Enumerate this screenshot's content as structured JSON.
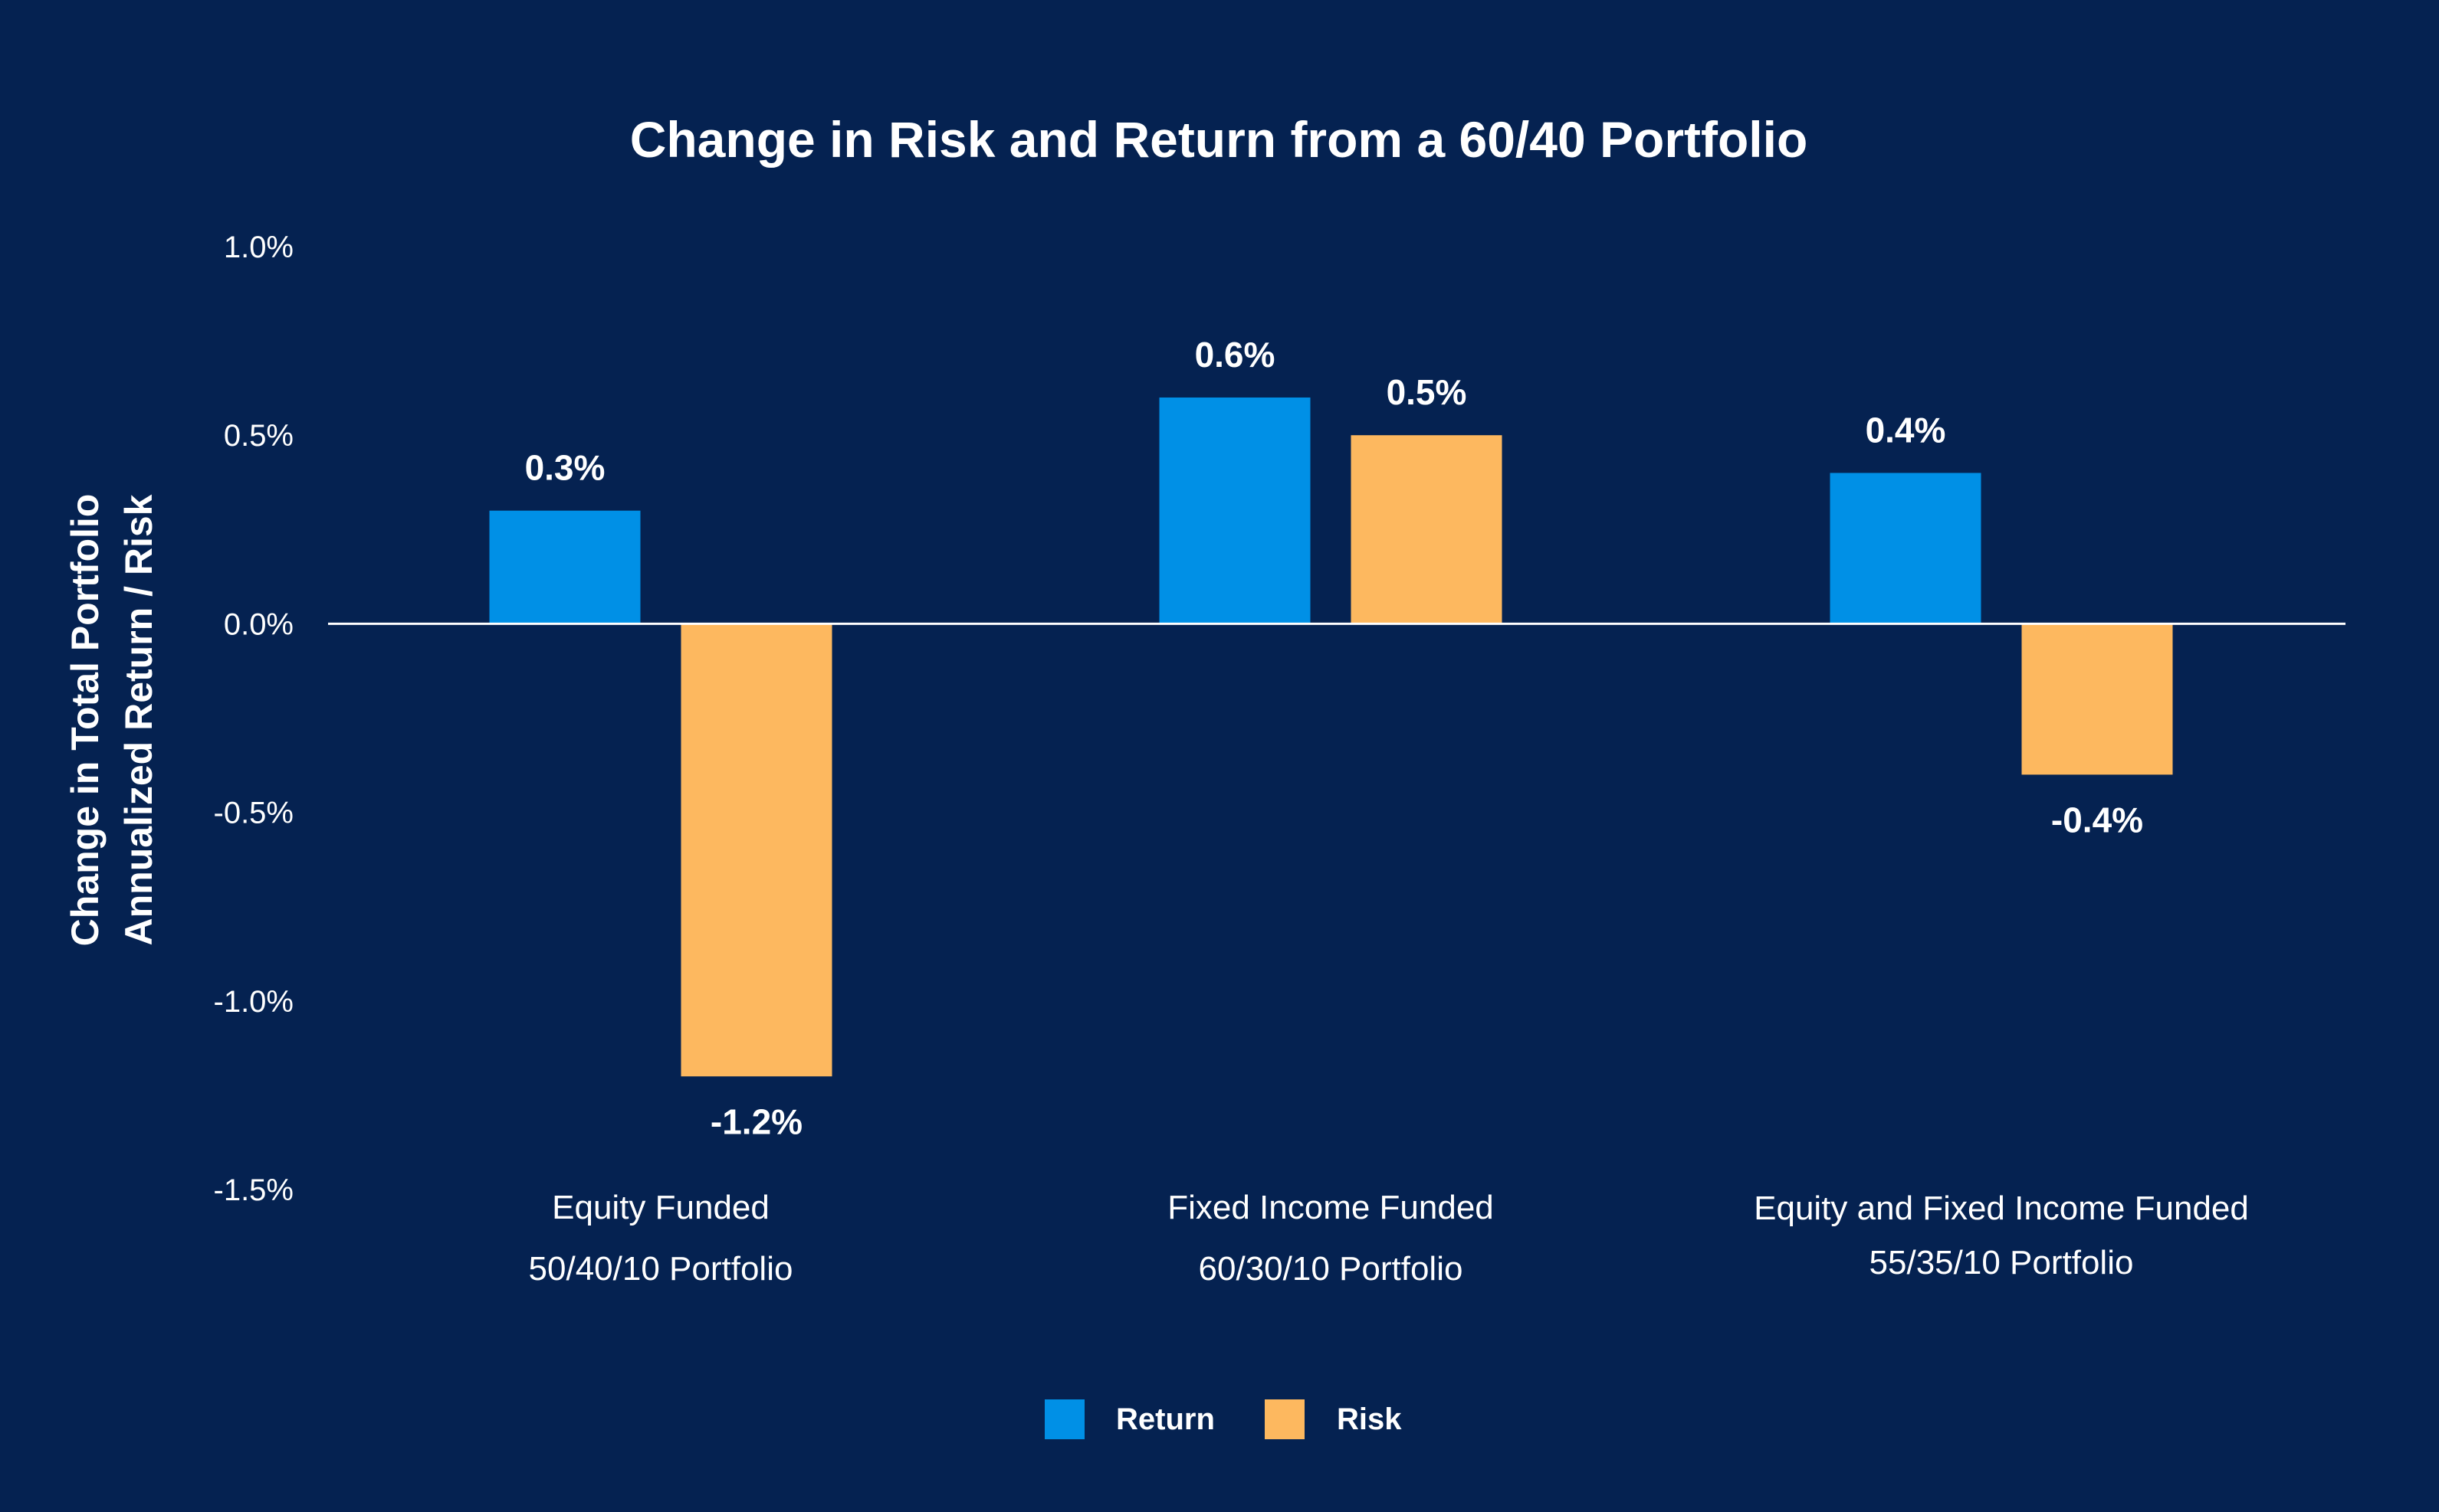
{
  "chart_data": {
    "type": "bar",
    "title": "Change in Risk and Return from a 60/40 Portfolio",
    "ylabel_lines": [
      "Change in Total Portfolio",
      "Annualized Return / Risk"
    ],
    "xlabel": "",
    "ylim": [
      -1.5,
      1.0
    ],
    "yticks": [
      1.0,
      0.5,
      0.0,
      -0.5,
      -1.0,
      -1.5
    ],
    "ytick_labels": [
      "1.0%",
      "0.5%",
      "0.0%",
      "-0.5%",
      "-1.0%",
      "-1.5%"
    ],
    "grid": false,
    "legend_position": "bottom-center",
    "categories": [
      {
        "line1": "Equity Funded",
        "line2": "50/40/10 Portfolio"
      },
      {
        "line1": "Fixed Income Funded",
        "line2": "60/30/10 Portfolio"
      },
      {
        "line1": "Equity and Fixed Income Funded",
        "line2": "55/35/10 Portfolio"
      }
    ],
    "series": [
      {
        "name": "Return",
        "color": "#0090E6",
        "values": [
          0.3,
          0.6,
          0.4
        ],
        "labels": [
          "0.3%",
          "0.6%",
          "0.4%"
        ]
      },
      {
        "name": "Risk",
        "color": "#FDB85F",
        "values": [
          -1.2,
          0.5,
          -0.4
        ],
        "labels": [
          "-1.2%",
          "0.5%",
          "-0.4%"
        ]
      }
    ]
  },
  "colors": {
    "background": "#052251",
    "text": "#FFFFFF",
    "zero_line": "#FFFFFF"
  }
}
